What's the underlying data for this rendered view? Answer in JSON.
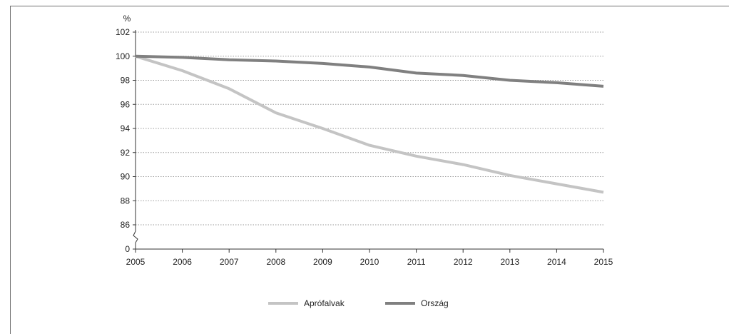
{
  "chart_data": {
    "type": "line",
    "ylabel_unit": "%",
    "x": [
      2005,
      2006,
      2007,
      2008,
      2009,
      2010,
      2011,
      2012,
      2013,
      2014,
      2015
    ],
    "y_ticks": [
      "0",
      "86",
      "88",
      "90",
      "92",
      "94",
      "96",
      "98",
      "100",
      "102"
    ],
    "axis_break": true,
    "ylim": [
      86,
      102
    ],
    "grid": true,
    "legend_position": "bottom",
    "series": [
      {
        "name": "Aprófalvak",
        "color": "#c4c4c4",
        "values": [
          100,
          98.8,
          97.3,
          95.3,
          94.0,
          92.6,
          91.7,
          91.0,
          90.1,
          89.4,
          88.7
        ]
      },
      {
        "name": "Ország",
        "color": "#808080",
        "values": [
          100,
          99.9,
          99.7,
          99.6,
          99.4,
          99.1,
          98.6,
          98.4,
          98.0,
          97.8,
          97.5
        ]
      }
    ]
  }
}
